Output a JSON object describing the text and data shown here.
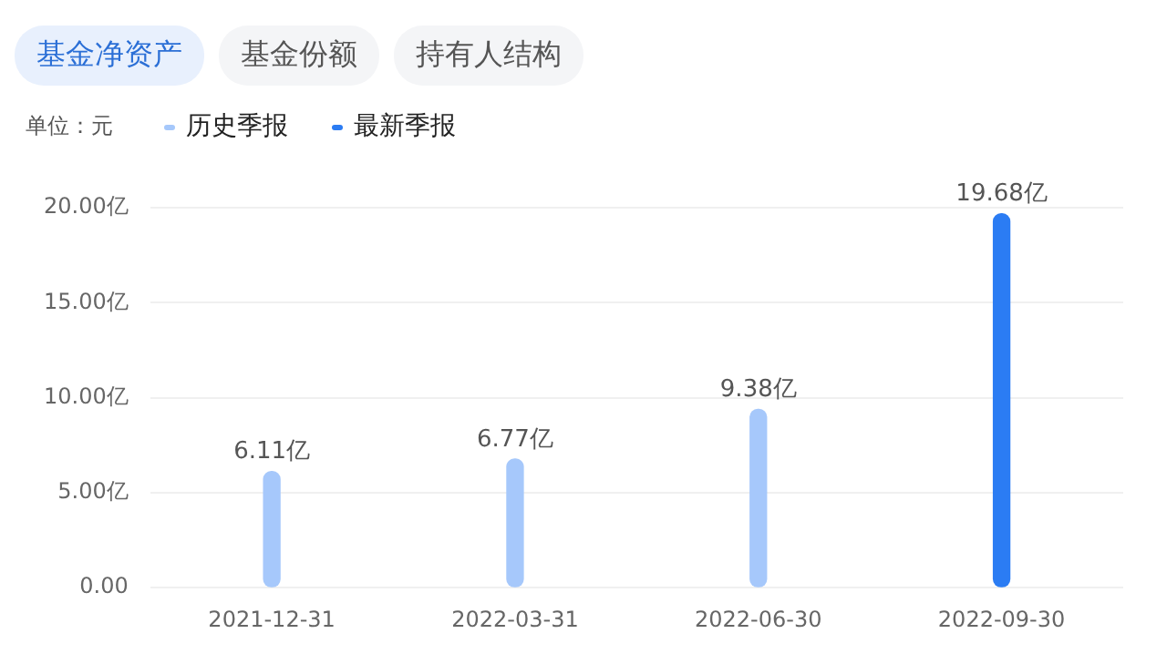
{
  "chart_data": {
    "type": "bar",
    "ylabel": "单位：元",
    "annotations": [
      "基金净资产",
      "基金份额",
      "持有人结构"
    ],
    "categories": [
      "2021-12-31",
      "2022-03-31",
      "2022-06-30",
      "2022-09-30"
    ],
    "series": [
      {
        "name": "历史季报",
        "color": "#a6c8fb",
        "values": [
          6.11,
          6.77,
          9.38,
          null
        ],
        "value_labels": [
          "6.11亿",
          "6.77亿",
          "9.38亿",
          null
        ]
      },
      {
        "name": "最新季报",
        "color": "#2b7cf3",
        "values": [
          null,
          null,
          null,
          19.68
        ],
        "value_labels": [
          null,
          null,
          null,
          "19.68亿"
        ]
      }
    ],
    "ylim": [
      0,
      20
    ],
    "yticks": [
      {
        "value": 0,
        "label": "0.00"
      },
      {
        "value": 5,
        "label": "5.00亿"
      },
      {
        "value": 10,
        "label": "10.00亿"
      },
      {
        "value": 15,
        "label": "15.00亿"
      },
      {
        "value": 20,
        "label": "20.00亿"
      }
    ],
    "grid": "y",
    "legend": "top left"
  }
}
